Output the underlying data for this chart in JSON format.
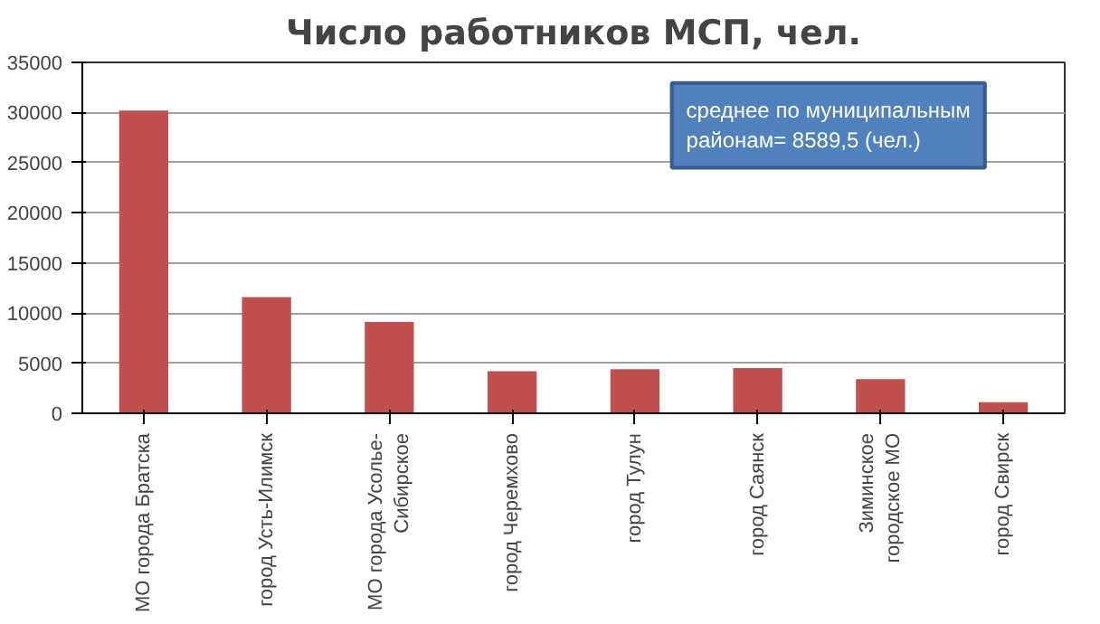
{
  "chart_data": {
    "type": "bar",
    "title": "Число работников МСП, чел.",
    "categories": [
      "МО города Братска",
      "город Усть-Илимск",
      "МО города Усолье-Сибирское",
      "город Черемхово",
      "город Тулун",
      "город Саянск",
      "Зиминское городское МО",
      "город Свирск"
    ],
    "values": [
      30200,
      11600,
      9100,
      4200,
      4400,
      4500,
      3400,
      1100
    ],
    "color": "#c0504d",
    "ylim": [
      0,
      35000
    ],
    "yticks": [
      0,
      5000,
      10000,
      15000,
      20000,
      25000,
      30000,
      35000
    ],
    "grid": "y",
    "annotations": [
      "среднее по муниципальным районам= 8589,5 (чел.)"
    ]
  }
}
